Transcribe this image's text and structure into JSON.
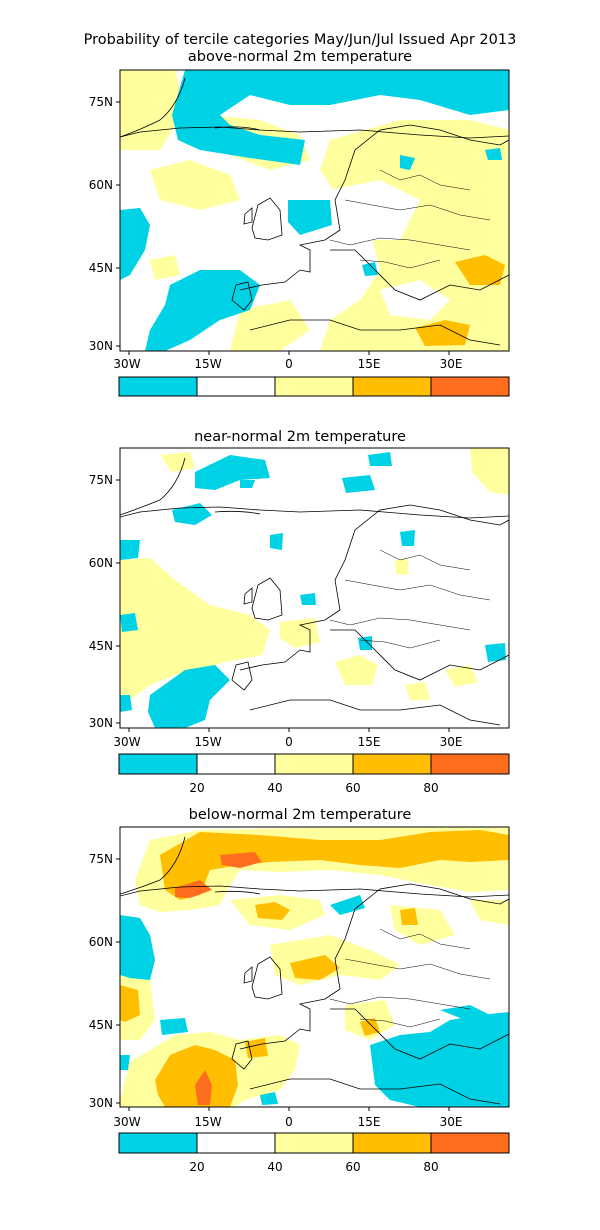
{
  "figure_title": "Probability of tercile categories May/Jun/Jul Issued Apr 2013",
  "colors": {
    "lt20": "#00d2e6",
    "20to40": "#ffffff",
    "40to60": "#ffff9e",
    "60to80": "#ffbe00",
    "gt80": "#ff6e1e",
    "coast": "#000000"
  },
  "lat_labels": [
    "75N",
    "60N",
    "45N",
    "30N"
  ],
  "lon_labels": [
    "30W",
    "15W",
    "0",
    "15E",
    "30E"
  ],
  "colorbar": {
    "tick_labels": [
      "20",
      "40",
      "60",
      "80"
    ],
    "bins": [
      "lt20",
      "20to40",
      "40to60",
      "60to80",
      "gt80"
    ]
  },
  "panels": [
    {
      "id": "above",
      "title": "above-normal 2m temperature"
    },
    {
      "id": "near",
      "title": "near-normal 2m temperature"
    },
    {
      "id": "below",
      "title": "below-normal 2m temperature"
    }
  ]
}
